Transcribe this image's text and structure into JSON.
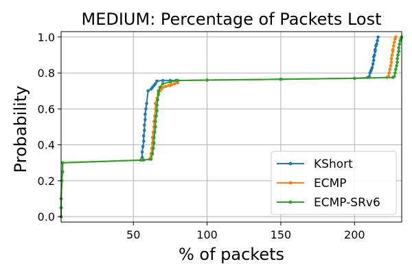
{
  "chart_data": {
    "type": "line",
    "title": "MEDIUM: Percentage of Packets Lost",
    "xlabel": "% of packets",
    "ylabel": "Probability",
    "xlim": [
      1,
      232
    ],
    "ylim": [
      -0.03,
      1.03
    ],
    "xticks": [
      50,
      100,
      150,
      200
    ],
    "yticks": [
      0.0,
      0.2,
      0.4,
      0.6,
      0.8,
      1.0
    ],
    "xtick_labels": [
      "50",
      "100",
      "150",
      "200"
    ],
    "ytick_labels": [
      "0.0",
      "0.2",
      "0.4",
      "0.6",
      "0.8",
      "1.0"
    ],
    "grid": true,
    "legend_position": "lower-right",
    "legend": [
      "KShort",
      "ECMP",
      "ECMP-SRv6"
    ],
    "series": [
      {
        "name": "KShort",
        "color": "#1f77b4",
        "x": [
          1,
          1,
          1,
          1.5,
          2,
          2,
          55,
          56,
          56,
          56.5,
          57,
          57,
          57.5,
          57.5,
          58,
          58,
          58.5,
          59,
          60,
          62,
          63,
          64,
          65,
          66,
          70,
          75,
          79,
          80,
          100,
          150,
          200,
          209,
          210,
          210.5,
          211,
          211.5,
          212,
          212.5,
          213,
          213,
          213.5,
          214,
          214,
          214.5,
          215,
          215.5,
          216
        ],
        "y": [
          0.0,
          0.05,
          0.1,
          0.2,
          0.25,
          0.3,
          0.315,
          0.33,
          0.36,
          0.39,
          0.42,
          0.45,
          0.48,
          0.51,
          0.54,
          0.57,
          0.6,
          0.63,
          0.7,
          0.71,
          0.72,
          0.73,
          0.74,
          0.755,
          0.758,
          0.758,
          0.758,
          0.758,
          0.76,
          0.765,
          0.77,
          0.775,
          0.78,
          0.8,
          0.81,
          0.82,
          0.83,
          0.85,
          0.87,
          0.89,
          0.9,
          0.92,
          0.93,
          0.95,
          0.96,
          0.98,
          1.0
        ]
      },
      {
        "name": "ECMP",
        "color": "#ff7f0e",
        "x": [
          1,
          1,
          1,
          1.5,
          2,
          2,
          56,
          61,
          62,
          62.5,
          63,
          63,
          63.5,
          64,
          64,
          64.5,
          65,
          65,
          66,
          67,
          68,
          69,
          70,
          72,
          74,
          75,
          76,
          78,
          80,
          80,
          100,
          150,
          200,
          222,
          223,
          223.5,
          224,
          224.5,
          225,
          225,
          225.5,
          226,
          226,
          226.5,
          227,
          227.5,
          228
        ],
        "y": [
          0.0,
          0.05,
          0.1,
          0.2,
          0.25,
          0.3,
          0.315,
          0.32,
          0.35,
          0.38,
          0.41,
          0.44,
          0.47,
          0.5,
          0.53,
          0.56,
          0.6,
          0.63,
          0.66,
          0.69,
          0.7,
          0.71,
          0.72,
          0.725,
          0.73,
          0.73,
          0.735,
          0.74,
          0.745,
          0.758,
          0.76,
          0.765,
          0.77,
          0.775,
          0.78,
          0.8,
          0.82,
          0.84,
          0.86,
          0.88,
          0.9,
          0.92,
          0.93,
          0.95,
          0.97,
          0.99,
          1.0
        ]
      },
      {
        "name": "ECMP-SRv6",
        "color": "#2ca02c",
        "x": [
          1,
          1,
          1,
          1.5,
          2,
          2,
          57,
          62,
          63,
          63.5,
          64,
          64,
          64.5,
          65,
          65,
          65.5,
          66,
          66,
          66.5,
          67,
          67,
          68,
          70,
          75,
          80,
          100,
          150,
          200,
          226,
          227,
          227.5,
          228,
          228.5,
          229,
          229,
          229.5,
          230,
          230,
          230.5,
          231,
          231.5,
          232
        ],
        "y": [
          0.0,
          0.05,
          0.1,
          0.2,
          0.25,
          0.3,
          0.315,
          0.32,
          0.35,
          0.38,
          0.41,
          0.44,
          0.47,
          0.5,
          0.53,
          0.56,
          0.59,
          0.62,
          0.65,
          0.68,
          0.7,
          0.72,
          0.74,
          0.75,
          0.758,
          0.76,
          0.765,
          0.77,
          0.775,
          0.78,
          0.8,
          0.82,
          0.84,
          0.86,
          0.88,
          0.9,
          0.92,
          0.94,
          0.96,
          0.98,
          0.99,
          1.0
        ]
      }
    ]
  }
}
